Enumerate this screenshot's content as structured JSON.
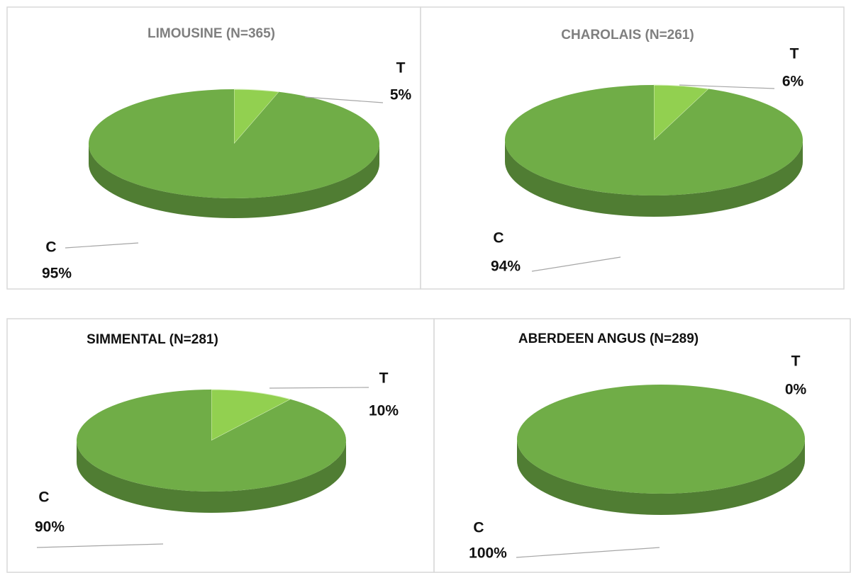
{
  "chart_data": [
    {
      "type": "pie",
      "title": "LIMOUSINE (N=365)",
      "title_color": "#7f7f7f",
      "categories": [
        "T",
        "C"
      ],
      "values": [
        5,
        95
      ],
      "value_labels": [
        "5%",
        "95%"
      ],
      "colors": [
        "#92d050",
        "#70ad47"
      ]
    },
    {
      "type": "pie",
      "title": "CHAROLAIS (N=261)",
      "title_color": "#7f7f7f",
      "categories": [
        "T",
        "C"
      ],
      "values": [
        6,
        94
      ],
      "value_labels": [
        "6%",
        "94%"
      ],
      "colors": [
        "#92d050",
        "#70ad47"
      ]
    },
    {
      "type": "pie",
      "title": "SIMMENTAL (N=281)",
      "title_color": "#111111",
      "categories": [
        "T",
        "C"
      ],
      "values": [
        10,
        90
      ],
      "value_labels": [
        "10%",
        "90%"
      ],
      "colors": [
        "#92d050",
        "#70ad47"
      ]
    },
    {
      "type": "pie",
      "title": "ABERDEEN ANGUS (N=289)",
      "title_color": "#111111",
      "categories": [
        "T",
        "C"
      ],
      "values": [
        0,
        100
      ],
      "value_labels": [
        "0%",
        "100%"
      ],
      "colors": [
        "#92d050",
        "#70ad47"
      ]
    }
  ]
}
